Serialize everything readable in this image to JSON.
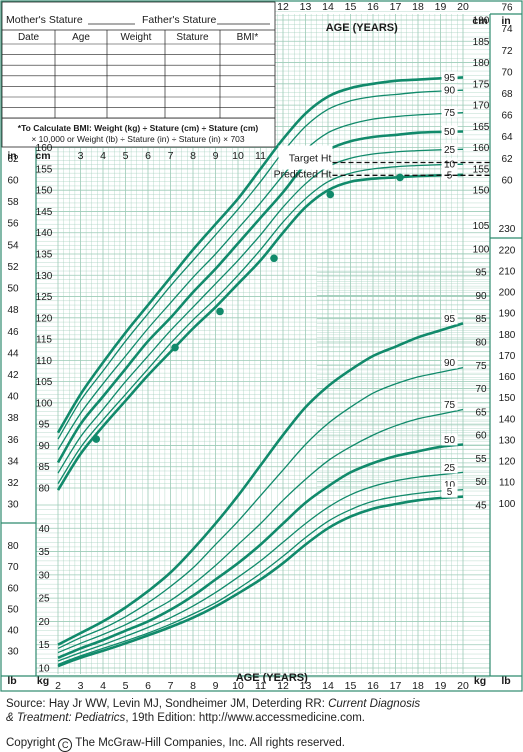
{
  "record_table": {
    "mother_label": "Mother's Stature",
    "father_label": "Father's Stature",
    "columns": [
      "Date",
      "Age",
      "Weight",
      "Stature",
      "BMI*"
    ],
    "row_count": 7,
    "bmi_note_line1": "*To Calculate BMI: Weight (kg) ÷ Stature (cm) ÷ Stature (cm)",
    "bmi_note_line2": "× 10,000 or Weight (lb) ÷ Stature (in) ÷ Stature (in) × 703"
  },
  "source": {
    "line1_pre": "Source: Hay Jr WW, Levin MJ, Sondheimer JM, Deterding RR: ",
    "line1_title": "Current Diagnosis",
    "line2_title": "& Treatment: Pediatrics",
    "line2_post": ", 19th Edition: http://www.accessmedicine.com."
  },
  "copyright": {
    "pre": "Copyright",
    "symbol": "C",
    "post": "The McGraw-Hill Companies, Inc. All rights reserved."
  },
  "chart_data": {
    "type": "line",
    "axis_title_top": "AGE (YEARS)",
    "axis_title_bottom": "AGE (YEARS)",
    "top_age_ticks": [
      12,
      13,
      14,
      15,
      16,
      17,
      18,
      19,
      20
    ],
    "mid_age_ticks": [
      3,
      4,
      5,
      6,
      7,
      8,
      9,
      10,
      11
    ],
    "bottom_age_ticks": [
      2,
      3,
      4,
      5,
      6,
      7,
      8,
      9,
      10,
      11,
      12,
      13,
      14,
      15,
      16,
      17,
      18,
      19,
      20
    ],
    "xlim": [
      2,
      20
    ],
    "stature_cm_range": [
      80,
      190
    ],
    "stature_cm_ticks_left": [
      80,
      85,
      90,
      95,
      100,
      105,
      110,
      115,
      120,
      125,
      130,
      135,
      140,
      145,
      150,
      155,
      160
    ],
    "stature_cm_ticks_right": [
      150,
      155,
      160,
      165,
      170,
      175,
      180,
      185,
      190
    ],
    "stature_in_ticks_left": [
      30,
      32,
      34,
      36,
      38,
      40,
      42,
      44,
      46,
      48,
      50,
      52,
      54,
      56,
      58,
      60,
      62
    ],
    "stature_in_ticks_right": [
      60,
      62,
      64,
      66,
      68,
      70,
      72,
      74,
      76
    ],
    "weight_kg_range": [
      8,
      105
    ],
    "weight_kg_ticks_left": [
      10,
      15,
      20,
      25,
      30,
      35,
      40
    ],
    "weight_kg_ticks_right": [
      45,
      50,
      55,
      60,
      65,
      70,
      75,
      80,
      85,
      90,
      95,
      100,
      105
    ],
    "weight_lb_ticks_left": [
      30,
      40,
      50,
      60,
      70,
      80
    ],
    "weight_lb_ticks_right": [
      100,
      110,
      120,
      130,
      140,
      150,
      160,
      170,
      180,
      190,
      200,
      210,
      220,
      230
    ],
    "unit_labels": {
      "in": "in",
      "cm": "cm",
      "lb": "lb",
      "kg": "kg"
    },
    "stature_percentiles": [
      {
        "name": "95",
        "values": [
          [
            2,
            93
          ],
          [
            3,
            102
          ],
          [
            4,
            109.5
          ],
          [
            5,
            116.5
          ],
          [
            6,
            123
          ],
          [
            7,
            129.5
          ],
          [
            8,
            136
          ],
          [
            9,
            142
          ],
          [
            10,
            148
          ],
          [
            11,
            155
          ],
          [
            12,
            162
          ],
          [
            13,
            168
          ],
          [
            14,
            172
          ],
          [
            15,
            174
          ],
          [
            16,
            175
          ],
          [
            17,
            175.7
          ],
          [
            18,
            176
          ],
          [
            19,
            176.3
          ],
          [
            20,
            176.5
          ]
        ]
      },
      {
        "name": "90",
        "values": [
          [
            2,
            91.5
          ],
          [
            3,
            100.5
          ],
          [
            4,
            107.5
          ],
          [
            5,
            114.5
          ],
          [
            6,
            121
          ],
          [
            7,
            127.5
          ],
          [
            8,
            133.5
          ],
          [
            9,
            139.5
          ],
          [
            10,
            145.5
          ],
          [
            11,
            152
          ],
          [
            12,
            159
          ],
          [
            13,
            165
          ],
          [
            14,
            169
          ],
          [
            15,
            171
          ],
          [
            16,
            172
          ],
          [
            17,
            172.5
          ],
          [
            18,
            173
          ],
          [
            19,
            173.3
          ],
          [
            20,
            173.5
          ]
        ]
      },
      {
        "name": "75",
        "values": [
          [
            2,
            89
          ],
          [
            3,
            97.5
          ],
          [
            4,
            104.5
          ],
          [
            5,
            111
          ],
          [
            6,
            117.5
          ],
          [
            7,
            123.5
          ],
          [
            8,
            129.5
          ],
          [
            9,
            135
          ],
          [
            10,
            141
          ],
          [
            11,
            147
          ],
          [
            12,
            153.5
          ],
          [
            13,
            159.5
          ],
          [
            14,
            163.5
          ],
          [
            15,
            165.5
          ],
          [
            16,
            166.7
          ],
          [
            17,
            167.3
          ],
          [
            18,
            167.7
          ],
          [
            19,
            168
          ],
          [
            20,
            168.2
          ]
        ]
      },
      {
        "name": "50",
        "values": [
          [
            2,
            86
          ],
          [
            3,
            95
          ],
          [
            4,
            101.5
          ],
          [
            5,
            108
          ],
          [
            6,
            114.5
          ],
          [
            7,
            120
          ],
          [
            8,
            126
          ],
          [
            9,
            131.5
          ],
          [
            10,
            137.5
          ],
          [
            11,
            143.5
          ],
          [
            12,
            149.5
          ],
          [
            13,
            156
          ],
          [
            14,
            159.5
          ],
          [
            15,
            161.5
          ],
          [
            16,
            162.5
          ],
          [
            17,
            163
          ],
          [
            18,
            163.5
          ],
          [
            19,
            163.7
          ],
          [
            20,
            163.8
          ]
        ]
      },
      {
        "name": "25",
        "values": [
          [
            2,
            83.5
          ],
          [
            3,
            92
          ],
          [
            4,
            98.5
          ],
          [
            5,
            105
          ],
          [
            6,
            111
          ],
          [
            7,
            117
          ],
          [
            8,
            122.5
          ],
          [
            9,
            128
          ],
          [
            10,
            133.5
          ],
          [
            11,
            139.5
          ],
          [
            12,
            146
          ],
          [
            13,
            151.5
          ],
          [
            14,
            155.5
          ],
          [
            15,
            157.5
          ],
          [
            16,
            158.5
          ],
          [
            17,
            159
          ],
          [
            18,
            159.3
          ],
          [
            19,
            159.5
          ],
          [
            20,
            159.6
          ]
        ]
      },
      {
        "name": "10",
        "values": [
          [
            2,
            81
          ],
          [
            3,
            89.5
          ],
          [
            4,
            96
          ],
          [
            5,
            102
          ],
          [
            6,
            108
          ],
          [
            7,
            114
          ],
          [
            8,
            119.5
          ],
          [
            9,
            124.5
          ],
          [
            10,
            130
          ],
          [
            11,
            136
          ],
          [
            12,
            142.5
          ],
          [
            13,
            148
          ],
          [
            14,
            152
          ],
          [
            15,
            154
          ],
          [
            16,
            155
          ],
          [
            17,
            155.5
          ],
          [
            18,
            155.8
          ],
          [
            19,
            156
          ],
          [
            20,
            156.1
          ]
        ]
      },
      {
        "name": "5",
        "values": [
          [
            2,
            79.5
          ],
          [
            3,
            88
          ],
          [
            4,
            94.5
          ],
          [
            5,
            100.5
          ],
          [
            6,
            106.5
          ],
          [
            7,
            112
          ],
          [
            8,
            117.5
          ],
          [
            9,
            122.5
          ],
          [
            10,
            128
          ],
          [
            11,
            133.5
          ],
          [
            12,
            140
          ],
          [
            13,
            146
          ],
          [
            14,
            150
          ],
          [
            15,
            152
          ],
          [
            16,
            152.7
          ],
          [
            17,
            153
          ],
          [
            18,
            153.3
          ],
          [
            19,
            153.5
          ],
          [
            20,
            153.6
          ]
        ]
      }
    ],
    "weight_percentiles": [
      {
        "name": "95",
        "values": [
          [
            2,
            15
          ],
          [
            3,
            17.5
          ],
          [
            4,
            20
          ],
          [
            5,
            23
          ],
          [
            6,
            26.5
          ],
          [
            7,
            30.5
          ],
          [
            8,
            35.5
          ],
          [
            9,
            41
          ],
          [
            10,
            47
          ],
          [
            11,
            53.5
          ],
          [
            12,
            60
          ],
          [
            13,
            66
          ],
          [
            14,
            70.5
          ],
          [
            15,
            74
          ],
          [
            16,
            77
          ],
          [
            17,
            79
          ],
          [
            18,
            81
          ],
          [
            19,
            82.5
          ],
          [
            20,
            84
          ]
        ]
      },
      {
        "name": "90",
        "values": [
          [
            2,
            14.2
          ],
          [
            3,
            16.5
          ],
          [
            4,
            18.5
          ],
          [
            5,
            21
          ],
          [
            6,
            24
          ],
          [
            7,
            27.5
          ],
          [
            8,
            31.5
          ],
          [
            9,
            36.5
          ],
          [
            10,
            41.5
          ],
          [
            11,
            47
          ],
          [
            12,
            52.5
          ],
          [
            13,
            58
          ],
          [
            14,
            62.5
          ],
          [
            15,
            66
          ],
          [
            16,
            69
          ],
          [
            17,
            71
          ],
          [
            18,
            72.5
          ],
          [
            19,
            73.5
          ],
          [
            20,
            74.5
          ]
        ]
      },
      {
        "name": "75",
        "values": [
          [
            2,
            13.3
          ],
          [
            3,
            15.3
          ],
          [
            4,
            17.2
          ],
          [
            5,
            19.3
          ],
          [
            6,
            21.8
          ],
          [
            7,
            24.5
          ],
          [
            8,
            28
          ],
          [
            9,
            32
          ],
          [
            10,
            36.5
          ],
          [
            11,
            41
          ],
          [
            12,
            46
          ],
          [
            13,
            50.5
          ],
          [
            14,
            54.5
          ],
          [
            15,
            57.5
          ],
          [
            16,
            60
          ],
          [
            17,
            62
          ],
          [
            18,
            63.5
          ],
          [
            19,
            64.5
          ],
          [
            20,
            65.5
          ]
        ]
      },
      {
        "name": "50",
        "values": [
          [
            2,
            12.2
          ],
          [
            3,
            14.2
          ],
          [
            4,
            16
          ],
          [
            5,
            18
          ],
          [
            6,
            20
          ],
          [
            7,
            22.5
          ],
          [
            8,
            25.5
          ],
          [
            9,
            29
          ],
          [
            10,
            32.5
          ],
          [
            11,
            36.5
          ],
          [
            12,
            41
          ],
          [
            13,
            45.5
          ],
          [
            14,
            49
          ],
          [
            15,
            52
          ],
          [
            16,
            54
          ],
          [
            17,
            55.5
          ],
          [
            18,
            56.5
          ],
          [
            19,
            57.5
          ],
          [
            20,
            58
          ]
        ]
      },
      {
        "name": "25",
        "values": [
          [
            2,
            11.5
          ],
          [
            3,
            13.3
          ],
          [
            4,
            15
          ],
          [
            5,
            16.8
          ],
          [
            6,
            18.7
          ],
          [
            7,
            20.8
          ],
          [
            8,
            23.3
          ],
          [
            9,
            26.2
          ],
          [
            10,
            29.5
          ],
          [
            11,
            33
          ],
          [
            12,
            37
          ],
          [
            13,
            41
          ],
          [
            14,
            44.5
          ],
          [
            15,
            47.2
          ],
          [
            16,
            49
          ],
          [
            17,
            50.2
          ],
          [
            18,
            51
          ],
          [
            19,
            51.5
          ],
          [
            20,
            52
          ]
        ]
      },
      {
        "name": "10",
        "values": [
          [
            2,
            10.8
          ],
          [
            3,
            12.6
          ],
          [
            4,
            14.2
          ],
          [
            5,
            15.8
          ],
          [
            6,
            17.5
          ],
          [
            7,
            19.4
          ],
          [
            8,
            21.6
          ],
          [
            9,
            24
          ],
          [
            10,
            27
          ],
          [
            11,
            30.3
          ],
          [
            12,
            34
          ],
          [
            13,
            38
          ],
          [
            14,
            41.5
          ],
          [
            15,
            44
          ],
          [
            16,
            45.8
          ],
          [
            17,
            46.8
          ],
          [
            18,
            47.5
          ],
          [
            19,
            48
          ],
          [
            20,
            48.3
          ]
        ]
      },
      {
        "name": "5",
        "values": [
          [
            2,
            10.4
          ],
          [
            3,
            12.2
          ],
          [
            4,
            13.7
          ],
          [
            5,
            15.3
          ],
          [
            6,
            17
          ],
          [
            7,
            18.8
          ],
          [
            8,
            20.8
          ],
          [
            9,
            23.2
          ],
          [
            10,
            26
          ],
          [
            11,
            29
          ],
          [
            12,
            32.5
          ],
          [
            13,
            36.5
          ],
          [
            14,
            40
          ],
          [
            15,
            42.5
          ],
          [
            16,
            44.2
          ],
          [
            17,
            45.2
          ],
          [
            18,
            46
          ],
          [
            19,
            46.5
          ],
          [
            20,
            46.8
          ]
        ]
      }
    ],
    "bold_percentiles": [
      "95",
      "50",
      "5"
    ],
    "patient_points": [
      [
        3.7,
        91.5
      ],
      [
        7.2,
        113
      ],
      [
        9.2,
        121.5
      ],
      [
        11.6,
        134
      ],
      [
        14.1,
        149
      ],
      [
        17.2,
        153
      ]
    ],
    "target_height": {
      "label": "Target Ht",
      "value": 156.5
    },
    "predicted_height": {
      "label": "Predicted Ht",
      "value": 153.5
    },
    "colors": {
      "curve": "#118a6b",
      "grid": "#9ccbb7",
      "frame": "#2e8a6e",
      "text": "#1a1a1a"
    }
  }
}
